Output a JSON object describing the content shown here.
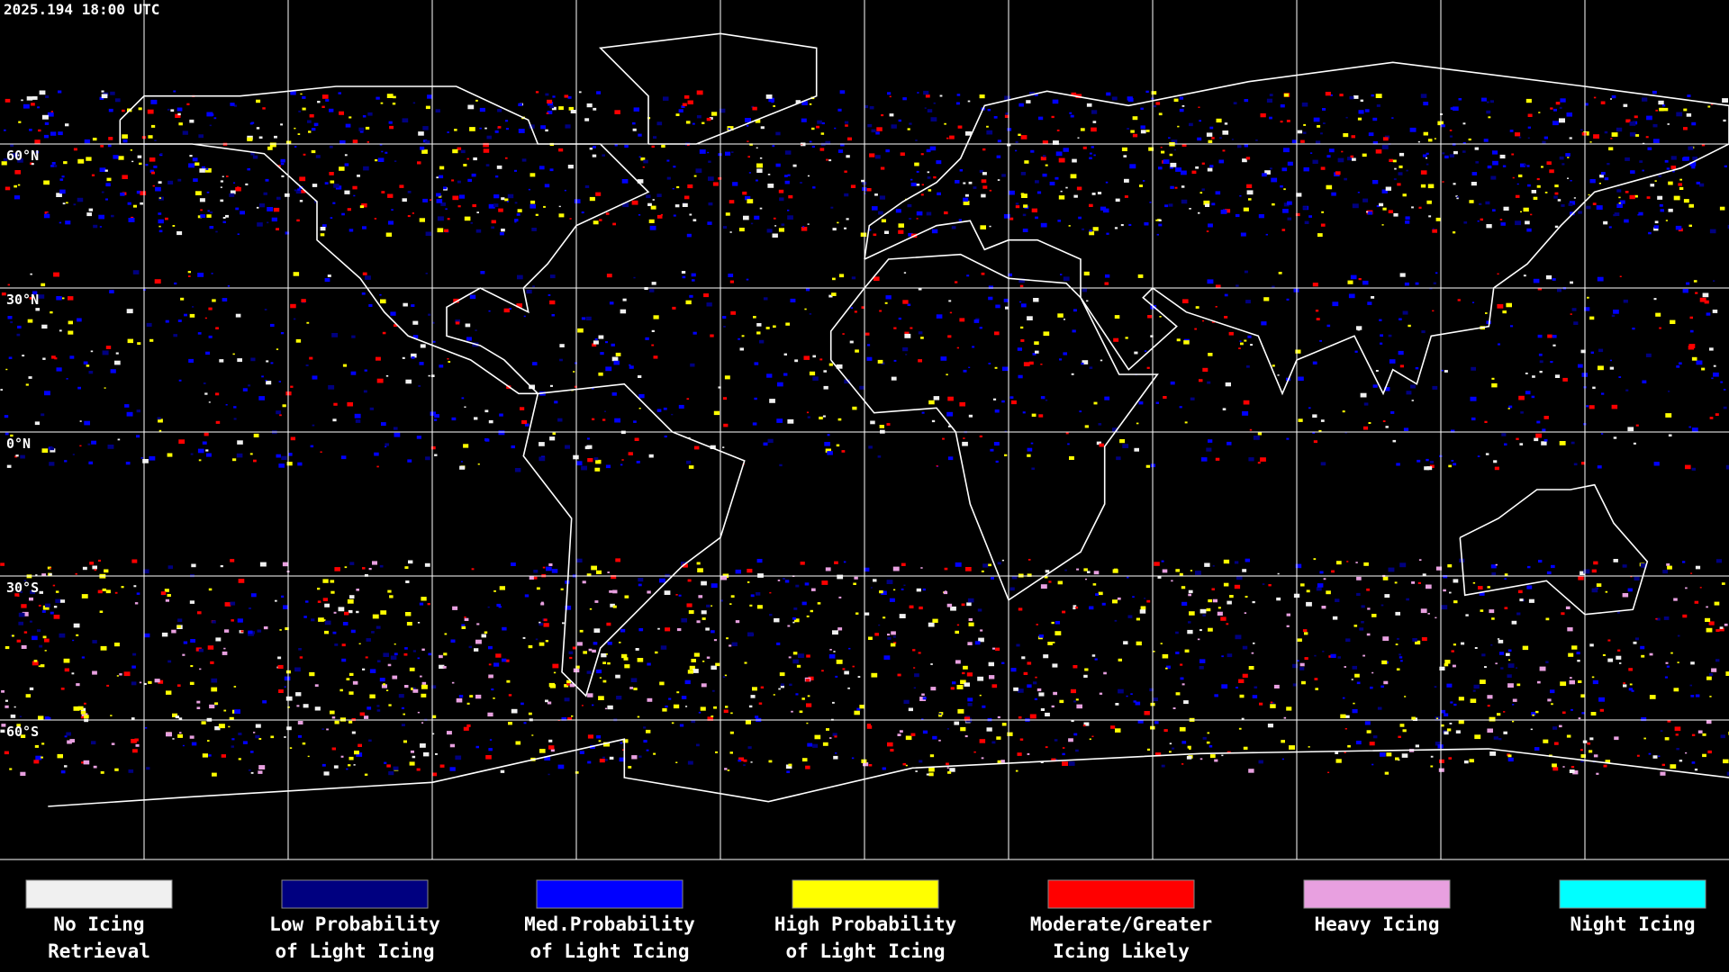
{
  "header": {
    "timestamp": "2025.194 18:00 UTC"
  },
  "map": {
    "latitude_labels": [
      "60°N",
      "30°N",
      "0°N",
      "30°S",
      "60°S"
    ]
  },
  "legend": {
    "items": [
      {
        "label_lines": [
          "No Icing",
          "Retrieval"
        ],
        "color": "#f0f0f0"
      },
      {
        "label_lines": [
          "Low Probability",
          "of Light Icing"
        ],
        "color": "#000080"
      },
      {
        "label_lines": [
          "Med.Probability",
          "of Light Icing"
        ],
        "color": "#0000ff"
      },
      {
        "label_lines": [
          "High Probability",
          "of Light Icing"
        ],
        "color": "#ffff00"
      },
      {
        "label_lines": [
          "Moderate/Greater",
          "Icing Likely"
        ],
        "color": "#ff0000"
      },
      {
        "label_lines": [
          "Heavy Icing"
        ],
        "color": "#e8a0e0"
      },
      {
        "label_lines": [
          "Night Icing"
        ],
        "color": "#00ffff"
      }
    ]
  }
}
